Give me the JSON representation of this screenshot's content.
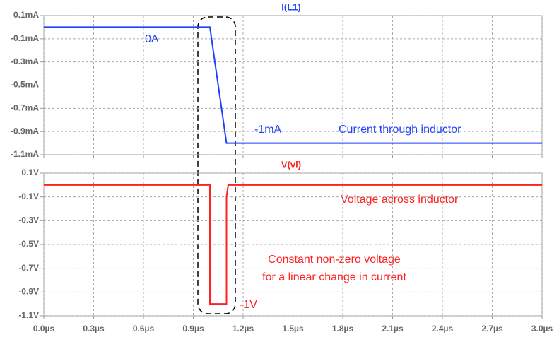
{
  "chart_data": [
    {
      "type": "line",
      "x": [
        0,
        1.0,
        1.1,
        3.0
      ],
      "series": [
        {
          "name": "I(L1)",
          "color": "#1f3fff",
          "values": [
            0,
            0,
            -1,
            -1
          ]
        }
      ],
      "xlim": [
        0,
        3.0
      ],
      "ylim": [
        -1.1,
        0.1
      ],
      "yticks": [
        {
          "value": 0.1,
          "label": "0.1mA"
        },
        {
          "value": -0.1,
          "label": "-0.1mA"
        },
        {
          "value": -0.3,
          "label": "-0.3mA"
        },
        {
          "value": -0.5,
          "label": "-0.5mA"
        },
        {
          "value": -0.7,
          "label": "-0.7mA"
        },
        {
          "value": -0.9,
          "label": "-0.9mA"
        },
        {
          "value": -1.1,
          "label": "-1.1mA"
        }
      ],
      "grid": true,
      "annotations": [
        "0A",
        "-1mA",
        "Current through inductor"
      ]
    },
    {
      "type": "line",
      "x": [
        0,
        1.0,
        1.0,
        1.1,
        1.1,
        1.11,
        3.0
      ],
      "series": [
        {
          "name": "V(vl)",
          "color": "#ff2020",
          "values": [
            0,
            0,
            -1,
            -1,
            -0.1,
            0,
            0
          ]
        }
      ],
      "xlim": [
        0,
        3.0
      ],
      "xticks": [
        {
          "value": 0,
          "label": "0.0µs"
        },
        {
          "value": 0.3,
          "label": "0.3µs"
        },
        {
          "value": 0.6,
          "label": "0.6µs"
        },
        {
          "value": 0.9,
          "label": "0.9µs"
        },
        {
          "value": 1.2,
          "label": "1.2µs"
        },
        {
          "value": 1.5,
          "label": "1.5µs"
        },
        {
          "value": 1.8,
          "label": "1.8µs"
        },
        {
          "value": 2.1,
          "label": "2.1µs"
        },
        {
          "value": 2.4,
          "label": "2.4µs"
        },
        {
          "value": 2.7,
          "label": "2.7µs"
        },
        {
          "value": 3.0,
          "label": "3.0µs"
        }
      ],
      "ylim": [
        -1.1,
        0.1
      ],
      "yticks": [
        {
          "value": 0.1,
          "label": "0.1V"
        },
        {
          "value": -0.1,
          "label": "-0.1V"
        },
        {
          "value": -0.3,
          "label": "-0.3V"
        },
        {
          "value": -0.5,
          "label": "-0.5V"
        },
        {
          "value": -0.7,
          "label": "-0.7V"
        },
        {
          "value": -0.9,
          "label": "-0.9V"
        },
        {
          "value": -1.1,
          "label": "-1.1V"
        }
      ],
      "grid": true,
      "annotations": [
        "Voltage across inductor",
        "Constant non-zero voltage",
        "for a linear change in current",
        "-1V"
      ]
    }
  ]
}
